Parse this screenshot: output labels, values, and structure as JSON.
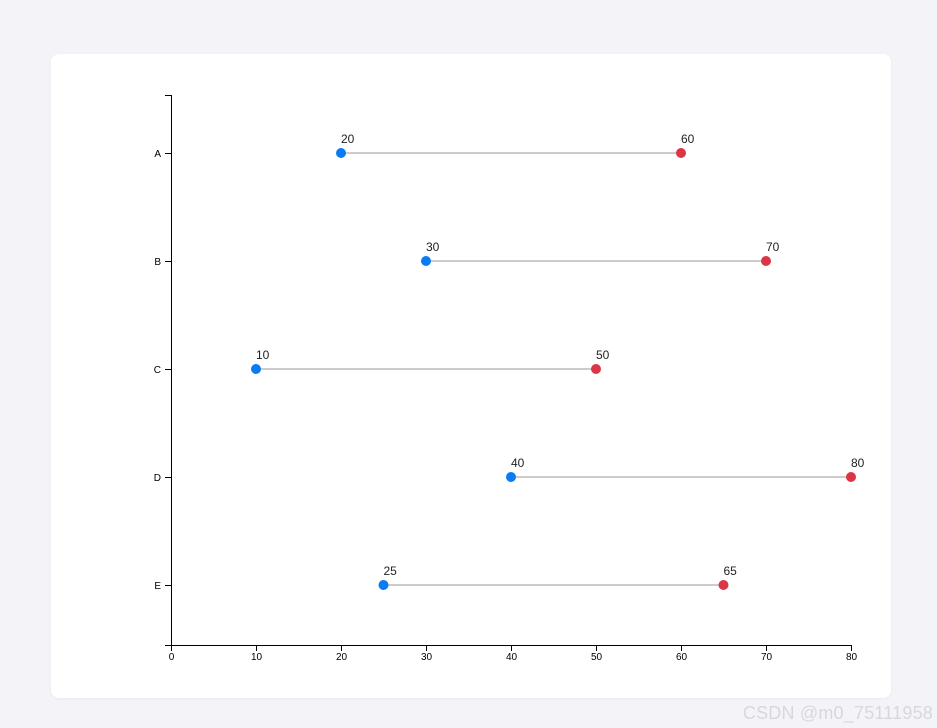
{
  "chart_data": {
    "type": "dumbbell",
    "title": "",
    "xlabel": "",
    "ylabel": "",
    "categories": [
      "A",
      "B",
      "C",
      "D",
      "E"
    ],
    "series": [
      {
        "values": [
          20,
          30,
          10,
          40,
          25
        ]
      },
      {
        "values": [
          60,
          70,
          50,
          80,
          65
        ]
      }
    ],
    "xlim": [
      0,
      80
    ],
    "xticks": [
      "0",
      "10",
      "20",
      "30",
      "40",
      "50",
      "60",
      "70",
      "80"
    ],
    "grid": false,
    "colors": {
      "start": "#0a7cf2",
      "end": "#dc3545",
      "connector": "#cccccc",
      "axis": "#000000"
    }
  },
  "watermark": "CSDN @m0_75111958"
}
